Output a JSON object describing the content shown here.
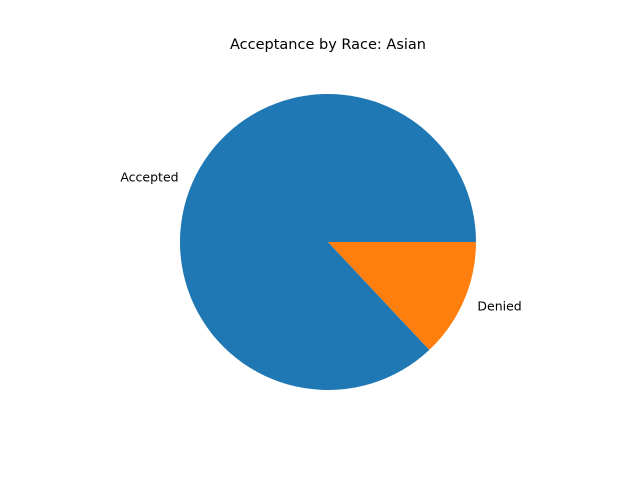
{
  "chart_data": {
    "type": "pie",
    "title": "Acceptance by Race: Asian",
    "labels": [
      "Accepted",
      "Denied"
    ],
    "values": [
      87,
      13
    ],
    "colors": [
      "#1f77b4",
      "#ff7f0e"
    ],
    "start_angle_deg": 0,
    "direction": "counterclockwise"
  }
}
